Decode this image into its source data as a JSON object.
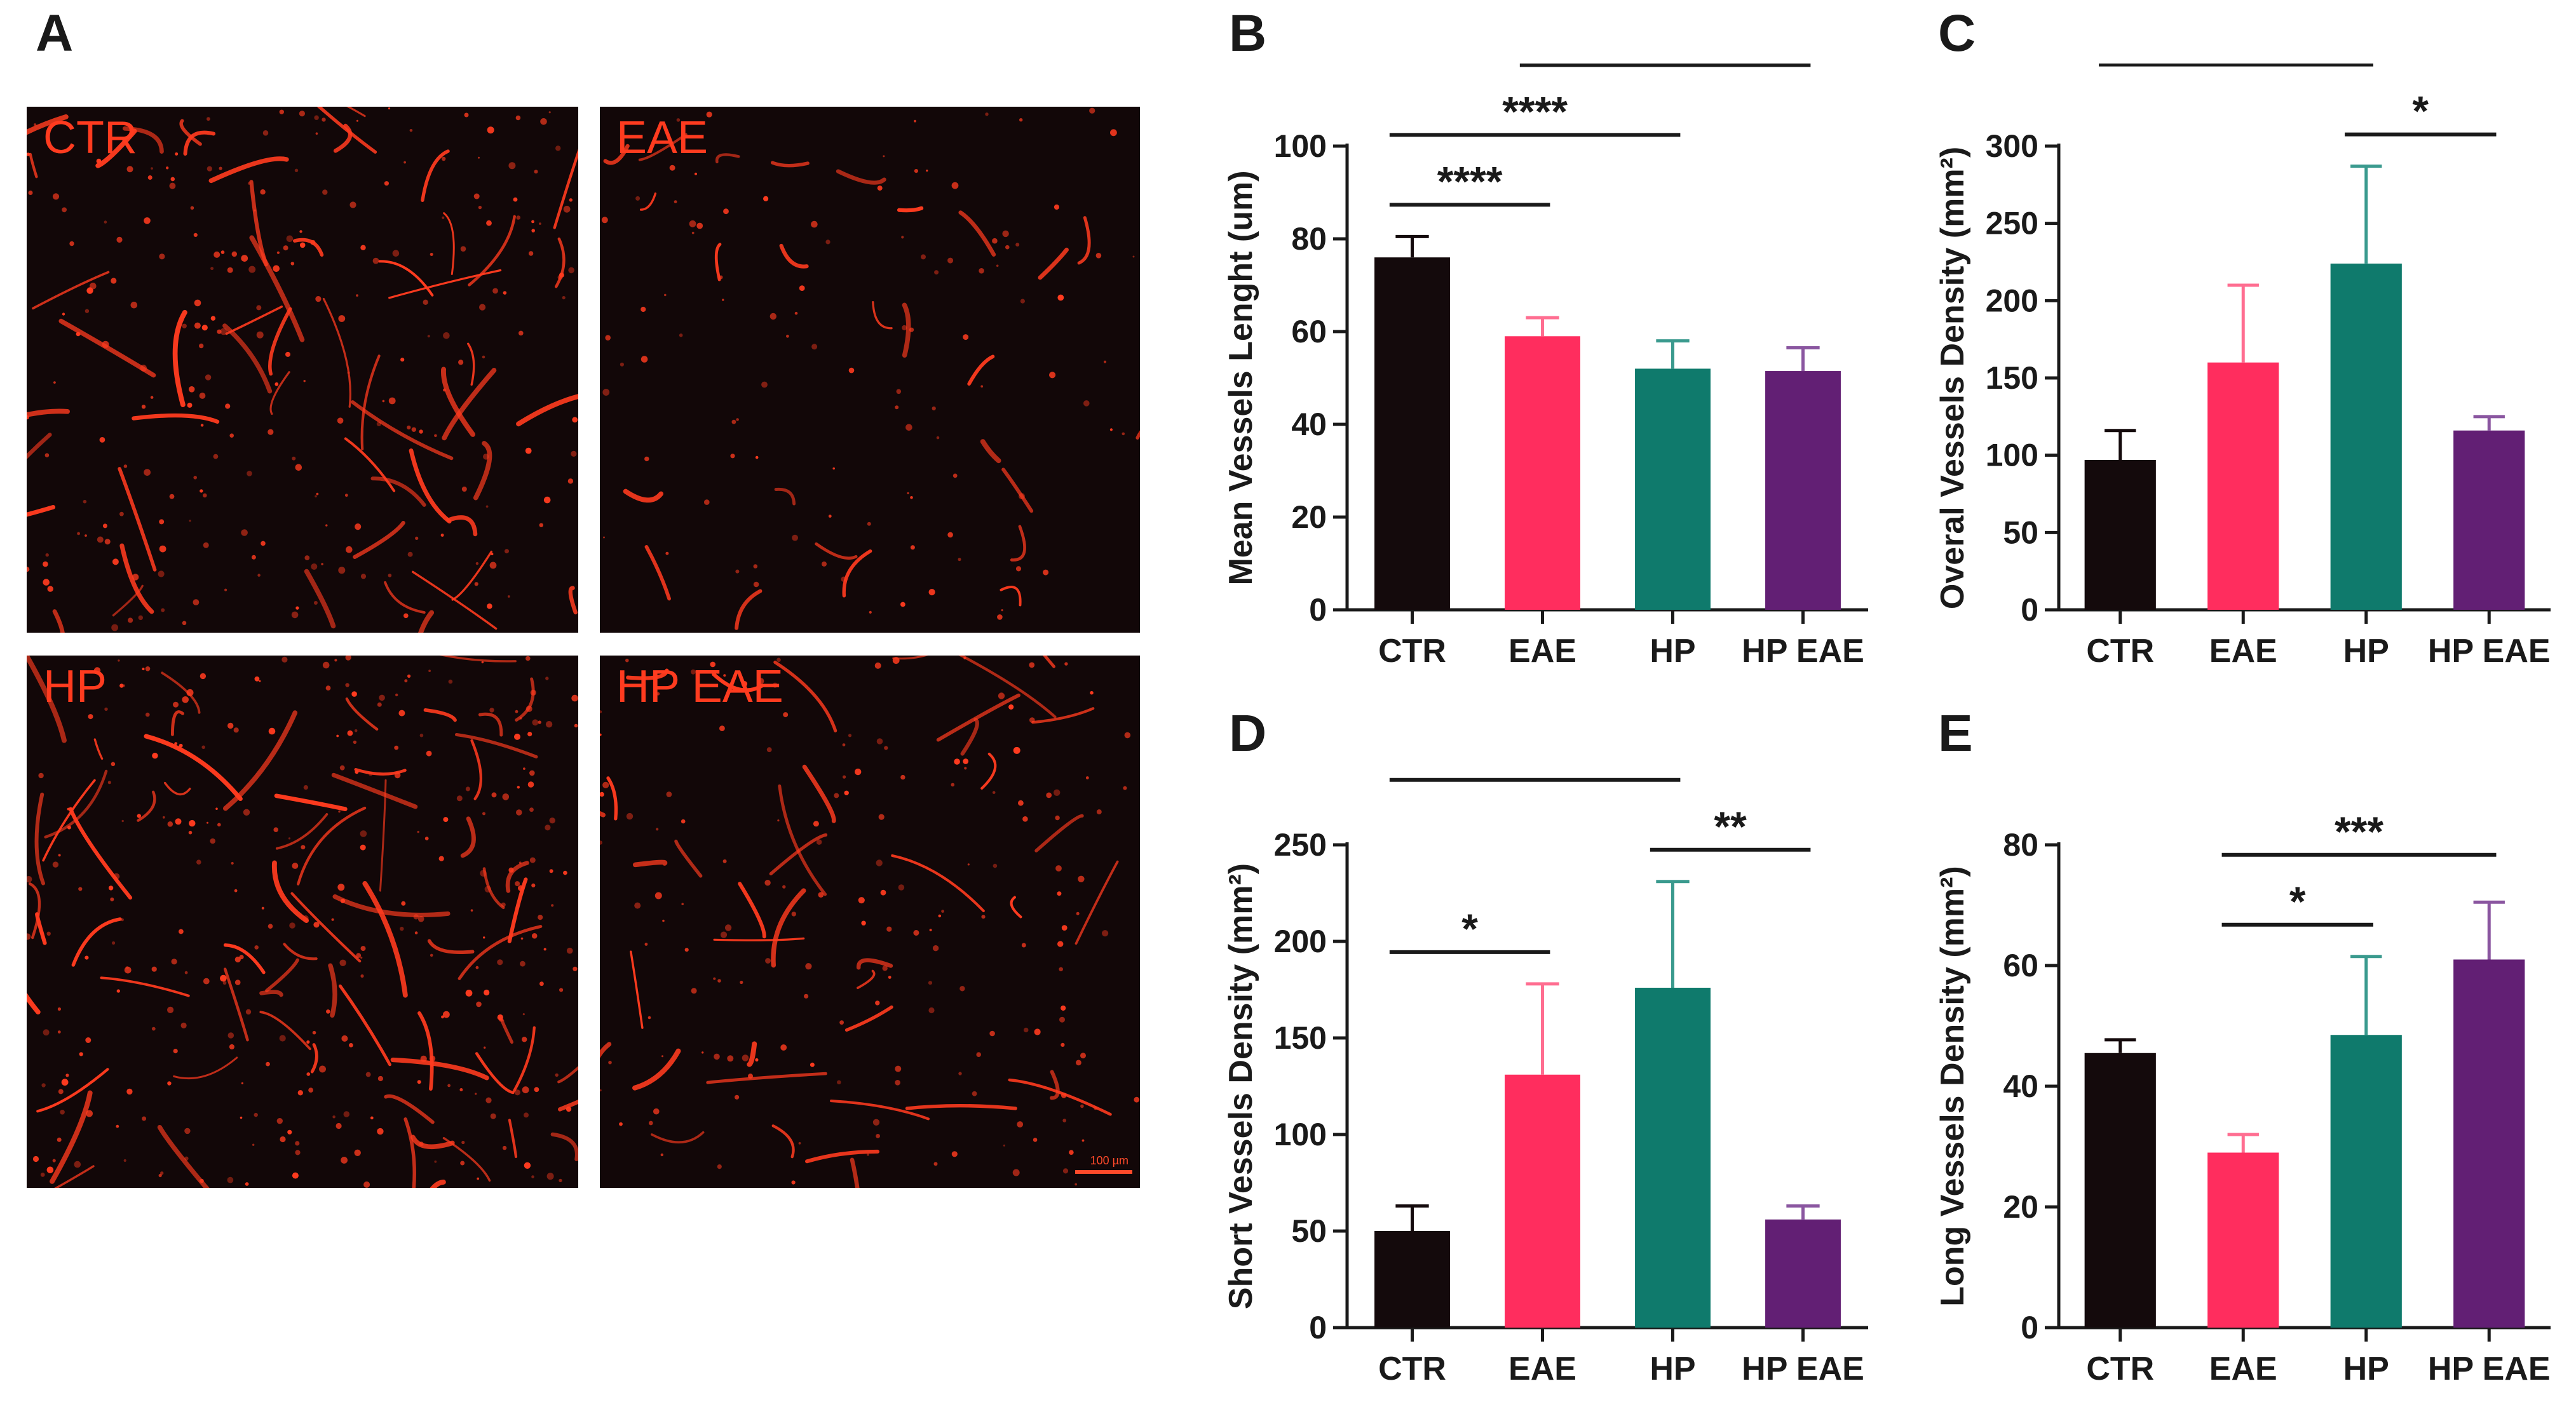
{
  "panels": {
    "A": "A",
    "B": "B",
    "C": "C",
    "D": "D",
    "E": "E"
  },
  "micrographs": [
    {
      "label": "CTR"
    },
    {
      "label": "EAE"
    },
    {
      "label": "HP"
    },
    {
      "label": "HP EAE"
    }
  ],
  "scale_bar": {
    "text": "100 µm"
  },
  "colors": {
    "CTR": "#140a0c",
    "EAE": "#ff2d5e",
    "HP": "#0f7a6c",
    "HP EAE": "#621f74",
    "micro_bg": "#120708",
    "vessel": "#ff3b1f"
  },
  "chart_data": [
    {
      "panel": "B",
      "type": "bar",
      "categories": [
        "CTR",
        "EAE",
        "HP",
        "HP EAE"
      ],
      "values": [
        76,
        59,
        52,
        51.5
      ],
      "errors": [
        4.5,
        4,
        6,
        5
      ],
      "ylabel": "Mean Vessels Lenght (um)",
      "ylim": [
        0,
        100
      ],
      "yticks": [
        0,
        20,
        40,
        60,
        80,
        100
      ],
      "significance": [
        {
          "from": 0,
          "to": 3,
          "label": "****"
        },
        {
          "from": 0,
          "to": 2,
          "label": "****"
        },
        {
          "from": 0,
          "to": 1,
          "label": "****"
        },
        {
          "from": 1,
          "to": 3,
          "label": "*"
        }
      ]
    },
    {
      "panel": "C",
      "type": "bar",
      "categories": [
        "CTR",
        "EAE",
        "HP",
        "HP EAE"
      ],
      "values": [
        97,
        160,
        224,
        116
      ],
      "errors": [
        19,
        50,
        63,
        9
      ],
      "ylabel": "Overal Vessels Density (mm²)",
      "ylim": [
        0,
        300
      ],
      "yticks": [
        0,
        50,
        100,
        150,
        200,
        250,
        300
      ],
      "significance": [
        {
          "from": 0,
          "to": 2,
          "label": "**"
        },
        {
          "from": 2,
          "to": 3,
          "label": "*"
        }
      ]
    },
    {
      "panel": "D",
      "type": "bar",
      "categories": [
        "CTR",
        "EAE",
        "HP",
        "HP EAE"
      ],
      "values": [
        50,
        131,
        176,
        56
      ],
      "errors": [
        13,
        47,
        55,
        7
      ],
      "ylabel": "Short Vessels Density (mm²)",
      "ylim": [
        0,
        250
      ],
      "yticks": [
        0,
        50,
        100,
        150,
        200,
        250
      ],
      "significance": [
        {
          "from": 0,
          "to": 2,
          "label": "**"
        },
        {
          "from": 2,
          "to": 3,
          "label": "**"
        },
        {
          "from": 0,
          "to": 1,
          "label": "*"
        }
      ]
    },
    {
      "panel": "E",
      "type": "bar",
      "categories": [
        "CTR",
        "EAE",
        "HP",
        "HP EAE"
      ],
      "values": [
        45.5,
        29,
        48.5,
        61
      ],
      "errors": [
        2.2,
        3,
        13,
        9.5
      ],
      "ylabel": "Long Vessels Density (mm²)",
      "ylim": [
        0,
        80
      ],
      "yticks": [
        0,
        20,
        40,
        60,
        80
      ],
      "significance": [
        {
          "from": 1,
          "to": 3,
          "label": "***"
        },
        {
          "from": 1,
          "to": 2,
          "label": "*"
        }
      ]
    }
  ]
}
